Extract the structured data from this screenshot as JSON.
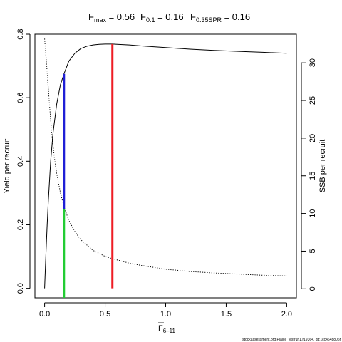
{
  "chart_data": {
    "type": "line",
    "title": {
      "fmax": {
        "main": "F",
        "sub": "max",
        "value": " = 0.56"
      },
      "f01": {
        "main": "F",
        "sub": "0.1",
        "value": " = 0.16"
      },
      "f035": {
        "main": "F",
        "sub": "0.35SPR",
        "value": " = 0.16"
      }
    },
    "xlabel": {
      "main": "F",
      "sub": "6–11"
    },
    "ylabel_left": "Yield per recruit",
    "ylabel_right": "SSB per recruit",
    "xlim": [
      -0.08,
      2.08
    ],
    "ylim_left": [
      -0.03,
      0.8
    ],
    "ylim_right": [
      -1.2,
      33.8
    ],
    "xticks": [
      "0.0",
      "0.5",
      "1.0",
      "1.5",
      "2.0"
    ],
    "yticks_left": [
      "0.0",
      "0.2",
      "0.4",
      "0.6",
      "0.8"
    ],
    "yticks_right": [
      "0",
      "5",
      "10",
      "15",
      "20",
      "25",
      "30"
    ],
    "grid": false,
    "series": [
      {
        "axis": "left",
        "color": "#000000",
        "dash": "solid",
        "x": [
          0,
          0.01,
          0.02,
          0.03,
          0.05,
          0.07,
          0.1,
          0.13,
          0.16,
          0.2,
          0.25,
          0.3,
          0.35,
          0.4,
          0.45,
          0.5,
          0.56,
          0.6,
          0.7,
          0.8,
          1.0,
          1.2,
          1.4,
          1.6,
          1.8,
          2.0
        ],
        "y": [
          0.0,
          0.1,
          0.19,
          0.27,
          0.4,
          0.49,
          0.58,
          0.64,
          0.675,
          0.715,
          0.74,
          0.755,
          0.762,
          0.766,
          0.768,
          0.769,
          0.769,
          0.768,
          0.766,
          0.763,
          0.758,
          0.753,
          0.749,
          0.746,
          0.743,
          0.74
        ]
      },
      {
        "axis": "right",
        "color": "#000000",
        "dash": "dotted",
        "x": [
          0,
          0.02,
          0.04,
          0.06,
          0.08,
          0.1,
          0.13,
          0.16,
          0.2,
          0.25,
          0.3,
          0.4,
          0.5,
          0.56,
          0.7,
          0.8,
          1.0,
          1.2,
          1.4,
          1.6,
          1.8,
          2.0
        ],
        "y": [
          33.2,
          29.0,
          24.5,
          20.5,
          17.5,
          15.3,
          12.8,
          10.9,
          9.1,
          7.6,
          6.5,
          5.1,
          4.3,
          4.0,
          3.4,
          3.1,
          2.6,
          2.3,
          2.1,
          1.95,
          1.8,
          1.7
        ]
      }
    ],
    "reference_lines": [
      {
        "name": "Fmax",
        "color": "#ee1c24",
        "x": 0.56,
        "axis": "left",
        "y_from": 0.0,
        "y_to": 0.769
      },
      {
        "name": "F0.1",
        "color": "#1f1fd6",
        "x": 0.16,
        "axis": "left",
        "y_from": 0.25,
        "y_to": 0.675
      },
      {
        "name": "F0.35SPR",
        "color": "#22cc33",
        "x": 0.16,
        "axis": "left",
        "y_from": -0.03,
        "y_to": 0.25
      }
    ]
  },
  "footer": "stockassessment.org,Plaice_testrun1,r19364, git:1cc464b806f"
}
